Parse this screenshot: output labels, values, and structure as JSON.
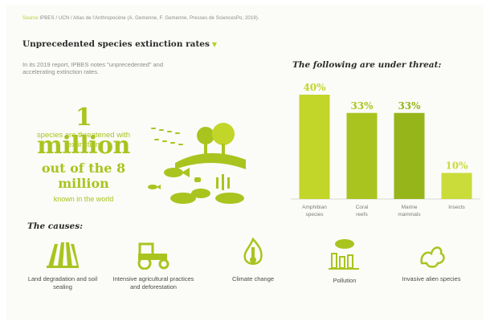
{
  "source": {
    "prefix": "Source",
    "text": "IPBES / UCN / Atlas de l'Anthropocène (A. Gemenne, F. Gemenne, Presses de SciencesPo, 2019)."
  },
  "title": "Unprecedented species extinction rates",
  "intro": "In its 2019 report, IPBES notes \"unprecedented\" and accelerating extinction rates.",
  "stats": {
    "big_number": "1 million",
    "big_text": "species are threatened with extinction",
    "out_of": "out of the 8 million",
    "out_of_text": "known in the world"
  },
  "chart_data": {
    "type": "bar",
    "title": "The following are under threat:",
    "categories": [
      "Amphibian species",
      "Coral reefs",
      "Marine mammals",
      "Insects"
    ],
    "values": [
      40,
      33,
      33,
      10
    ],
    "value_labels": [
      "40%",
      "33%",
      "33%",
      "10%"
    ],
    "ylim": [
      0,
      40
    ],
    "colors": [
      "#c2d629",
      "#a9c41f",
      "#96b51a",
      "#c9dc3a"
    ],
    "grid": false,
    "legend": "none"
  },
  "causes": {
    "title": "The causes:",
    "items": [
      {
        "label": "Land degradation and soil sealing",
        "icon": "fields-icon"
      },
      {
        "label": "Intensive agricultural practices and deforestation",
        "icon": "tractor-icon"
      },
      {
        "label": "Climate change",
        "icon": "thermometer-flame-icon"
      },
      {
        "label": "Pollution",
        "icon": "factory-smoke-icon"
      },
      {
        "label": "Invasive alien species",
        "icon": "invasive-plant-icon"
      }
    ]
  },
  "colors": {
    "accent": "#a9c41f",
    "dark": "#2b2b2b",
    "muted": "#8c8c8c"
  }
}
